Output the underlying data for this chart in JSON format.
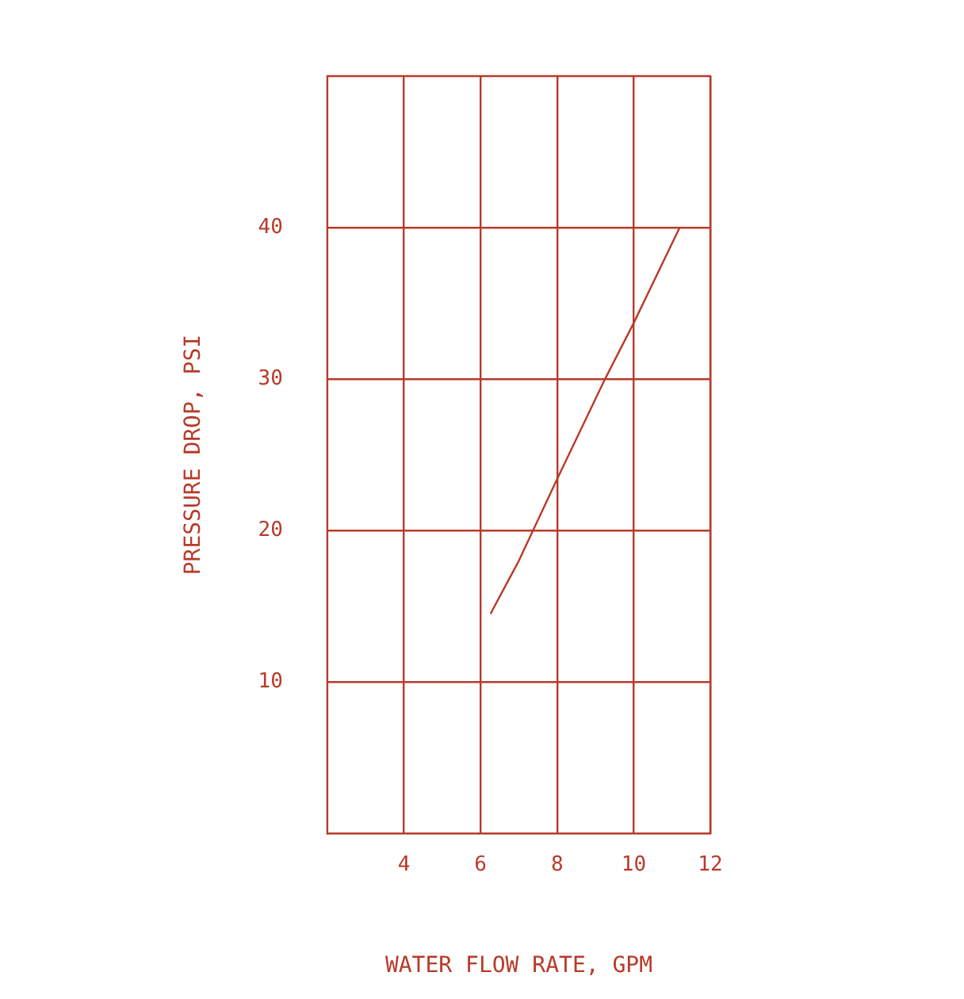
{
  "chart_data": {
    "type": "line",
    "xlabel": "WATER FLOW RATE, GPM",
    "ylabel": "PRESSURE DROP, PSI",
    "x": [
      6.26,
      7.0,
      8.0,
      9.25,
      10.0,
      11.2
    ],
    "series": [
      {
        "color": "#b83a2a",
        "values": [
          14.5,
          18.0,
          23.4,
          30.0,
          33.7,
          40.0
        ]
      }
    ],
    "xlim": [
      2,
      12
    ],
    "xticks": [
      4,
      6,
      8,
      10,
      12
    ],
    "ylim": [
      0,
      50
    ],
    "yticks": [
      10,
      20,
      30,
      40
    ],
    "grid": true,
    "legend": false,
    "marker": "none",
    "line_style": "solid"
  }
}
